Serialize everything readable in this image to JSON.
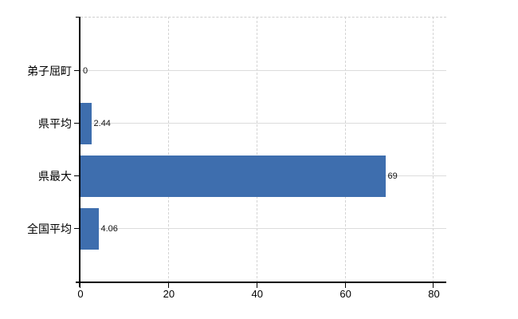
{
  "chart_data": {
    "type": "bar",
    "orientation": "horizontal",
    "title": "",
    "xlabel": "",
    "ylabel": "",
    "categories": [
      "弟子屈町",
      "県平均",
      "県最大",
      "全国平均"
    ],
    "values": [
      0,
      2.44,
      69,
      4.06
    ],
    "value_labels": [
      "0",
      "2.44",
      "69",
      "4.06"
    ],
    "x_ticks": [
      0,
      20,
      40,
      60,
      80
    ],
    "xlim": [
      0,
      82.8
    ],
    "grid": true,
    "legend": false,
    "bar_color": "#3e6eae",
    "grid_color": "#dcdcdc",
    "axis_color": "#000000",
    "text_color": "#000000",
    "background_color": "#ffffff"
  }
}
